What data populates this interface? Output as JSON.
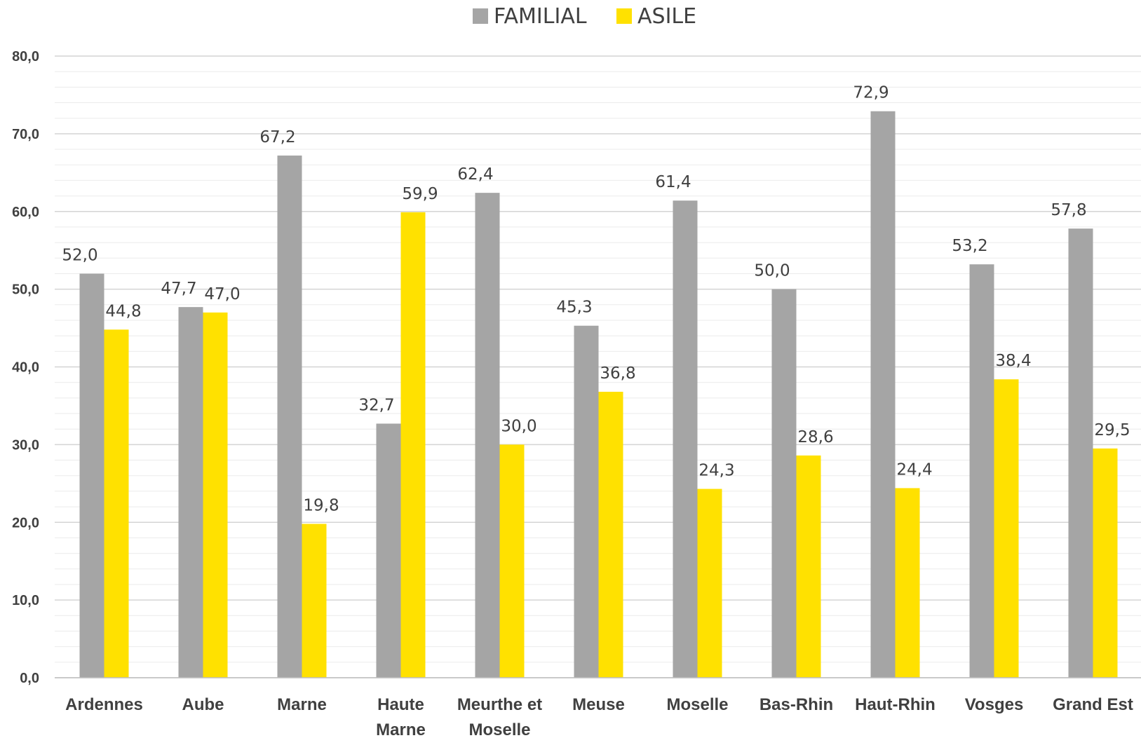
{
  "colors": {
    "familial": "#A5A5A5",
    "asile": "#FFE100",
    "grid_major": "#D4D4D4",
    "grid_minor": "#EBEBEB",
    "text": "#404040"
  },
  "chart_data": {
    "type": "bar",
    "title": "",
    "xlabel": "",
    "ylabel": "",
    "ylim": [
      0,
      80
    ],
    "y_major_step": 10,
    "y_minor_step": 2,
    "y_tick_labels": [
      "0,0",
      "10,0",
      "20,0",
      "30,0",
      "40,0",
      "50,0",
      "60,0",
      "70,0",
      "80,0"
    ],
    "legend_position": "top-center",
    "grid": true,
    "categories": [
      [
        "Ardennes"
      ],
      [
        "Aube"
      ],
      [
        "Marne"
      ],
      [
        "Haute",
        "Marne"
      ],
      [
        "Meurthe et",
        "Moselle"
      ],
      [
        "Meuse"
      ],
      [
        "Moselle"
      ],
      [
        "Bas-Rhin"
      ],
      [
        "Haut-Rhin"
      ],
      [
        "Vosges"
      ],
      [
        "Grand Est"
      ]
    ],
    "series": [
      {
        "name": "FAMILIAL",
        "values": [
          52.0,
          47.7,
          67.2,
          32.7,
          62.4,
          45.3,
          61.4,
          50.0,
          72.9,
          53.2,
          57.8
        ],
        "labels": [
          "52,0",
          "47,7",
          "67,2",
          "32,7",
          "62,4",
          "45,3",
          "61,4",
          "50,0",
          "72,9",
          "53,2",
          "57,8"
        ]
      },
      {
        "name": "ASILE",
        "values": [
          44.8,
          47.0,
          19.8,
          59.9,
          30.0,
          36.8,
          24.3,
          28.6,
          24.4,
          38.4,
          29.5
        ],
        "labels": [
          "44,8",
          "47,0",
          "19,8",
          "59,9",
          "30,0",
          "36,8",
          "24,3",
          "28,6",
          "24,4",
          "38,4",
          "29,5"
        ]
      }
    ]
  }
}
